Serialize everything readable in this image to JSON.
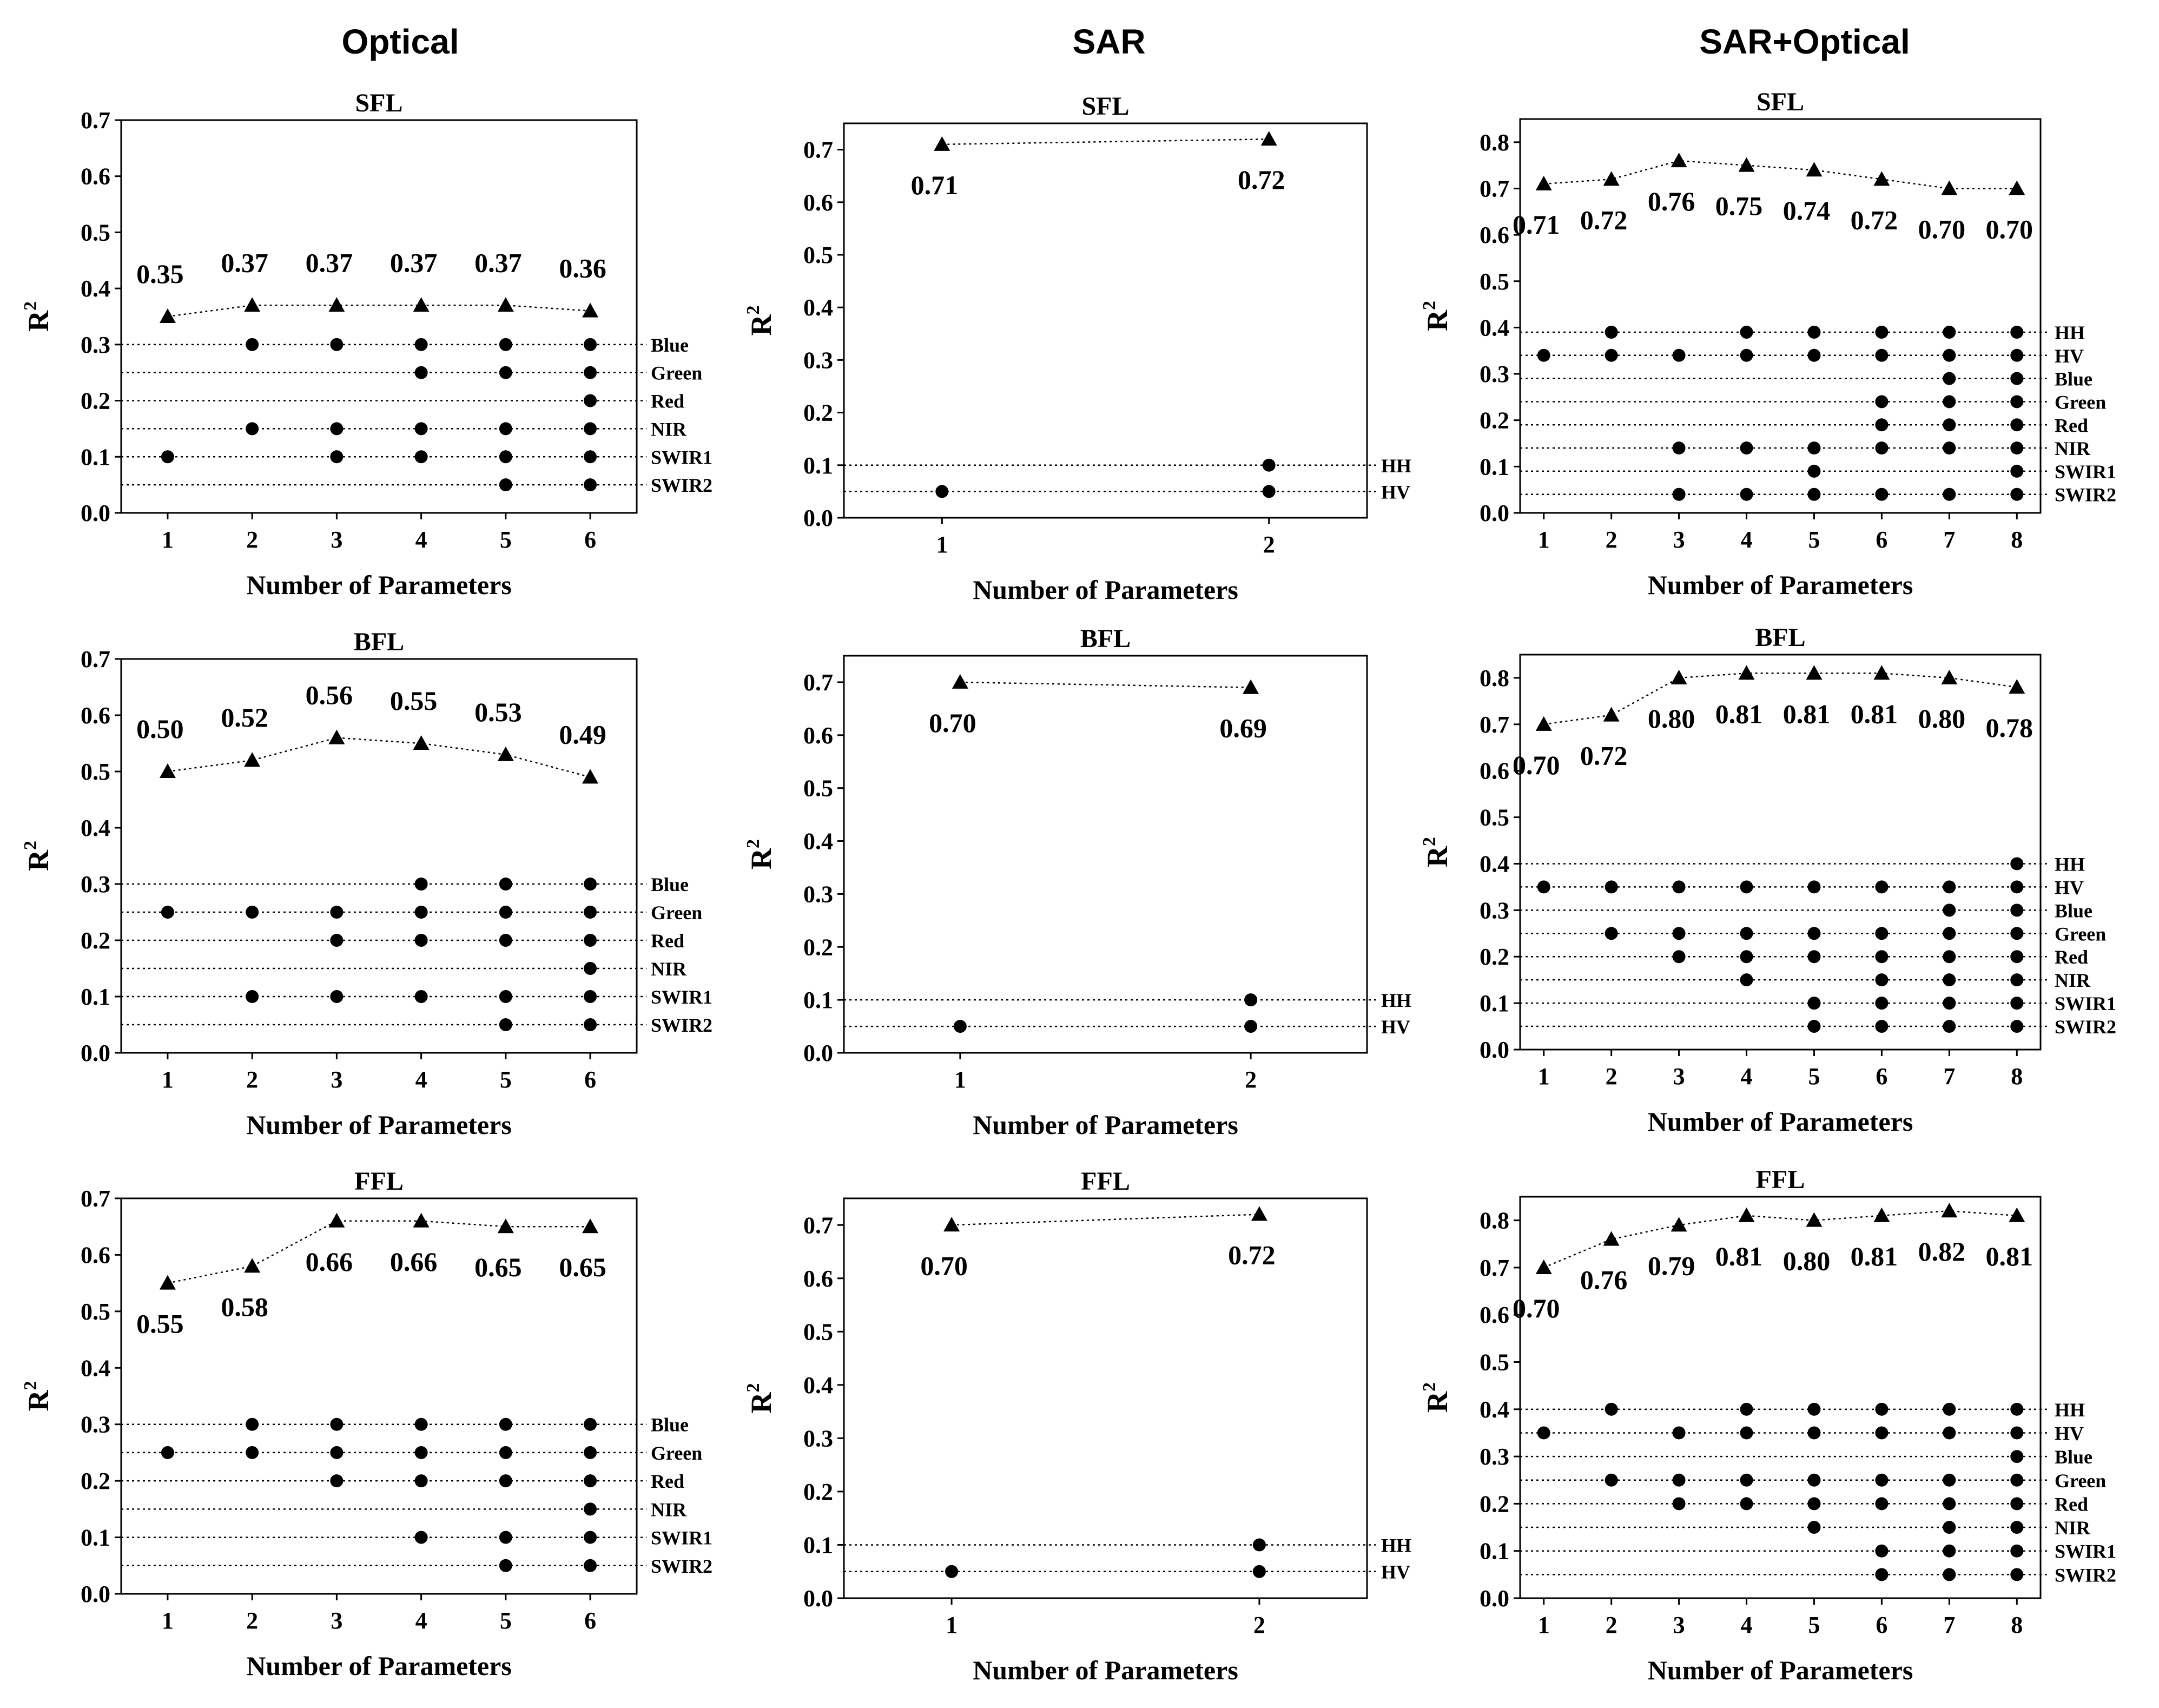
{
  "columns": [
    "Optical",
    "SAR",
    "SAR+Optical"
  ],
  "chart_data": [
    {
      "type": "scatter",
      "column": "Optical",
      "title": "SFL",
      "xlabel": "Number of Parameters",
      "ylabel": "R2",
      "xticks": [
        1,
        2,
        3,
        4,
        5,
        6
      ],
      "ylim": [
        0,
        0.7
      ],
      "yticks": [
        0,
        0.1,
        0.2,
        0.3,
        0.4,
        0.5,
        0.6,
        0.7
      ],
      "yticklabels": [
        "0.0",
        "0.1",
        "0.2",
        "0.3",
        "0.4",
        "0.5",
        "0.6",
        "0.7"
      ],
      "r2_series": [
        0.35,
        0.37,
        0.37,
        0.37,
        0.37,
        0.36
      ],
      "r2_labels": [
        "0.35",
        "0.37",
        "0.37",
        "0.37",
        "0.37",
        "0.36"
      ],
      "label_position": "above",
      "parameters": [
        {
          "name": "Blue",
          "y": 0.3,
          "selected_at": [
            2,
            3,
            4,
            5,
            6
          ]
        },
        {
          "name": "Green",
          "y": 0.25,
          "selected_at": [
            4,
            5,
            6
          ]
        },
        {
          "name": "Red",
          "y": 0.2,
          "selected_at": [
            6
          ]
        },
        {
          "name": "NIR",
          "y": 0.15,
          "selected_at": [
            2,
            3,
            4,
            5,
            6
          ]
        },
        {
          "name": "SWIR1",
          "y": 0.1,
          "selected_at": [
            1,
            3,
            4,
            5,
            6
          ]
        },
        {
          "name": "SWIR2",
          "y": 0.05,
          "selected_at": [
            5,
            6
          ]
        }
      ]
    },
    {
      "type": "scatter",
      "column": "SAR",
      "title": "SFL",
      "xlabel": "Number of Parameters",
      "ylabel": "R2",
      "xticks": [
        1,
        2
      ],
      "ylim": [
        0,
        0.75
      ],
      "yticks": [
        0,
        0.1,
        0.2,
        0.3,
        0.4,
        0.5,
        0.6,
        0.7
      ],
      "yticklabels": [
        "0.0",
        "0.1",
        "0.2",
        "0.3",
        "0.4",
        "0.5",
        "0.6",
        "0.7"
      ],
      "r2_series": [
        0.71,
        0.72
      ],
      "r2_labels": [
        "0.71",
        "0.72"
      ],
      "label_position": "below",
      "parameters": [
        {
          "name": "HH",
          "y": 0.1,
          "selected_at": [
            2
          ]
        },
        {
          "name": "HV",
          "y": 0.05,
          "selected_at": [
            1,
            2
          ]
        }
      ]
    },
    {
      "type": "scatter",
      "column": "SAR+Optical",
      "title": "SFL",
      "xlabel": "Number of Parameters",
      "ylabel": "R2",
      "xticks": [
        1,
        2,
        3,
        4,
        5,
        6,
        7,
        8
      ],
      "ylim": [
        0,
        0.85
      ],
      "yticks": [
        0,
        0.1,
        0.2,
        0.3,
        0.4,
        0.5,
        0.6,
        0.7,
        0.8
      ],
      "yticklabels": [
        "0.0",
        "0.1",
        "0.2",
        "0.3",
        "0.4",
        "0.5",
        "0.6",
        "0.7",
        "0.8"
      ],
      "r2_series": [
        0.71,
        0.72,
        0.76,
        0.75,
        0.74,
        0.72,
        0.7,
        0.7
      ],
      "r2_labels": [
        "0.71",
        "0.72",
        "0.76",
        "0.75",
        "0.74",
        "0.72",
        "0.70",
        "0.70"
      ],
      "label_position": "below",
      "parameters": [
        {
          "name": "HH",
          "y": 0.39,
          "selected_at": [
            2,
            4,
            5,
            6,
            7,
            8
          ]
        },
        {
          "name": "HV",
          "y": 0.34,
          "selected_at": [
            1,
            2,
            3,
            4,
            5,
            6,
            7,
            8
          ]
        },
        {
          "name": "Blue",
          "y": 0.29,
          "selected_at": [
            7,
            8
          ]
        },
        {
          "name": "Green",
          "y": 0.24,
          "selected_at": [
            6,
            7,
            8
          ]
        },
        {
          "name": "Red",
          "y": 0.19,
          "selected_at": [
            6,
            7,
            8
          ]
        },
        {
          "name": "NIR",
          "y": 0.14,
          "selected_at": [
            3,
            4,
            5,
            6,
            7,
            8
          ]
        },
        {
          "name": "SWIR1",
          "y": 0.09,
          "selected_at": [
            5,
            8
          ]
        },
        {
          "name": "SWIR2",
          "y": 0.04,
          "selected_at": [
            3,
            4,
            5,
            6,
            7,
            8
          ]
        }
      ]
    },
    {
      "type": "scatter",
      "column": "Optical",
      "title": "BFL",
      "xlabel": "Number of Parameters",
      "ylabel": "R2",
      "xticks": [
        1,
        2,
        3,
        4,
        5,
        6
      ],
      "ylim": [
        0,
        0.7
      ],
      "yticks": [
        0,
        0.1,
        0.2,
        0.3,
        0.4,
        0.5,
        0.6,
        0.7
      ],
      "yticklabels": [
        "0.0",
        "0.1",
        "0.2",
        "0.3",
        "0.4",
        "0.5",
        "0.6",
        "0.7"
      ],
      "r2_series": [
        0.5,
        0.52,
        0.56,
        0.55,
        0.53,
        0.49
      ],
      "r2_labels": [
        "0.50",
        "0.52",
        "0.56",
        "0.55",
        "0.53",
        "0.49"
      ],
      "label_position": "above",
      "parameters": [
        {
          "name": "Blue",
          "y": 0.3,
          "selected_at": [
            4,
            5,
            6
          ]
        },
        {
          "name": "Green",
          "y": 0.25,
          "selected_at": [
            1,
            2,
            3,
            4,
            5,
            6
          ]
        },
        {
          "name": "Red",
          "y": 0.2,
          "selected_at": [
            3,
            4,
            5,
            6
          ]
        },
        {
          "name": "NIR",
          "y": 0.15,
          "selected_at": [
            6
          ]
        },
        {
          "name": "SWIR1",
          "y": 0.1,
          "selected_at": [
            2,
            3,
            4,
            5,
            6
          ]
        },
        {
          "name": "SWIR2",
          "y": 0.05,
          "selected_at": [
            5,
            6
          ]
        }
      ]
    },
    {
      "type": "scatter",
      "column": "SAR",
      "title": "BFL",
      "xlabel": "Number of Parameters",
      "ylabel": "R2",
      "xticks": [
        1,
        2
      ],
      "ylim": [
        0,
        0.75
      ],
      "yticks": [
        0,
        0.1,
        0.2,
        0.3,
        0.4,
        0.5,
        0.6,
        0.7
      ],
      "yticklabels": [
        "0.0",
        "0.1",
        "0.2",
        "0.3",
        "0.4",
        "0.5",
        "0.6",
        "0.7"
      ],
      "r2_series": [
        0.7,
        0.69
      ],
      "r2_labels": [
        "0.70",
        "0.69"
      ],
      "label_position": "below",
      "parameters": [
        {
          "name": "HH",
          "y": 0.1,
          "selected_at": [
            2
          ]
        },
        {
          "name": "HV",
          "y": 0.05,
          "selected_at": [
            1,
            2
          ]
        }
      ]
    },
    {
      "type": "scatter",
      "column": "SAR+Optical",
      "title": "BFL",
      "xlabel": "Number of Parameters",
      "ylabel": "R2",
      "xticks": [
        1,
        2,
        3,
        4,
        5,
        6,
        7,
        8
      ],
      "ylim": [
        0,
        0.85
      ],
      "yticks": [
        0,
        0.1,
        0.2,
        0.3,
        0.4,
        0.5,
        0.6,
        0.7,
        0.8
      ],
      "yticklabels": [
        "0.0",
        "0.1",
        "0.2",
        "0.3",
        "0.4",
        "0.5",
        "0.6",
        "0.7",
        "0.8"
      ],
      "r2_series": [
        0.7,
        0.72,
        0.8,
        0.81,
        0.81,
        0.81,
        0.8,
        0.78
      ],
      "r2_labels": [
        "0.70",
        "0.72",
        "0.80",
        "0.81",
        "0.81",
        "0.81",
        "0.80",
        "0.78"
      ],
      "label_position": "below",
      "parameters": [
        {
          "name": "HH",
          "y": 0.4,
          "selected_at": [
            8
          ]
        },
        {
          "name": "HV",
          "y": 0.35,
          "selected_at": [
            1,
            2,
            3,
            4,
            5,
            6,
            7,
            8
          ]
        },
        {
          "name": "Blue",
          "y": 0.3,
          "selected_at": [
            7,
            8
          ]
        },
        {
          "name": "Green",
          "y": 0.25,
          "selected_at": [
            2,
            3,
            4,
            5,
            6,
            7,
            8
          ]
        },
        {
          "name": "Red",
          "y": 0.2,
          "selected_at": [
            3,
            4,
            5,
            6,
            7,
            8
          ]
        },
        {
          "name": "NIR",
          "y": 0.15,
          "selected_at": [
            4,
            6,
            7,
            8
          ]
        },
        {
          "name": "SWIR1",
          "y": 0.1,
          "selected_at": [
            5,
            6,
            7,
            8
          ]
        },
        {
          "name": "SWIR2",
          "y": 0.05,
          "selected_at": [
            5,
            6,
            7,
            8
          ]
        }
      ]
    },
    {
      "type": "scatter",
      "column": "Optical",
      "title": "FFL",
      "xlabel": "Number of Parameters",
      "ylabel": "R2",
      "xticks": [
        1,
        2,
        3,
        4,
        5,
        6
      ],
      "ylim": [
        0,
        0.7
      ],
      "yticks": [
        0,
        0.1,
        0.2,
        0.3,
        0.4,
        0.5,
        0.6,
        0.7
      ],
      "yticklabels": [
        "0.0",
        "0.1",
        "0.2",
        "0.3",
        "0.4",
        "0.5",
        "0.6",
        "0.7"
      ],
      "r2_series": [
        0.55,
        0.58,
        0.66,
        0.66,
        0.65,
        0.65
      ],
      "r2_labels": [
        "0.55",
        "0.58",
        "0.66",
        "0.66",
        "0.65",
        "0.65"
      ],
      "label_position": "below",
      "parameters": [
        {
          "name": "Blue",
          "y": 0.3,
          "selected_at": [
            2,
            3,
            4,
            5,
            6
          ]
        },
        {
          "name": "Green",
          "y": 0.25,
          "selected_at": [
            1,
            2,
            3,
            4,
            5,
            6
          ]
        },
        {
          "name": "Red",
          "y": 0.2,
          "selected_at": [
            3,
            4,
            5,
            6
          ]
        },
        {
          "name": "NIR",
          "y": 0.15,
          "selected_at": [
            6
          ]
        },
        {
          "name": "SWIR1",
          "y": 0.1,
          "selected_at": [
            4,
            5,
            6
          ]
        },
        {
          "name": "SWIR2",
          "y": 0.05,
          "selected_at": [
            5,
            6
          ]
        }
      ]
    },
    {
      "type": "scatter",
      "column": "SAR",
      "title": "FFL",
      "xlabel": "Number of Parameters",
      "ylabel": "R2",
      "xticks": [
        1,
        2
      ],
      "ylim": [
        0,
        0.75
      ],
      "yticks": [
        0,
        0.1,
        0.2,
        0.3,
        0.4,
        0.5,
        0.6,
        0.7
      ],
      "yticklabels": [
        "0.0",
        "0.1",
        "0.2",
        "0.3",
        "0.4",
        "0.5",
        "0.6",
        "0.7"
      ],
      "r2_series": [
        0.7,
        0.72
      ],
      "r2_labels": [
        "0.70",
        "0.72"
      ],
      "label_position": "below",
      "parameters": [
        {
          "name": "HH",
          "y": 0.1,
          "selected_at": [
            2
          ]
        },
        {
          "name": "HV",
          "y": 0.05,
          "selected_at": [
            1,
            2
          ]
        }
      ]
    },
    {
      "type": "scatter",
      "column": "SAR+Optical",
      "title": "FFL",
      "xlabel": "Number of Parameters",
      "ylabel": "R2",
      "xticks": [
        1,
        2,
        3,
        4,
        5,
        6,
        7,
        8
      ],
      "ylim": [
        0,
        0.85
      ],
      "yticks": [
        0,
        0.1,
        0.2,
        0.3,
        0.4,
        0.5,
        0.6,
        0.7,
        0.8
      ],
      "yticklabels": [
        "0.0",
        "0.1",
        "0.2",
        "0.3",
        "0.4",
        "0.5",
        "0.6",
        "0.7",
        "0.8"
      ],
      "r2_series": [
        0.7,
        0.76,
        0.79,
        0.81,
        0.8,
        0.81,
        0.82,
        0.81
      ],
      "r2_labels": [
        "0.70",
        "0.76",
        "0.79",
        "0.81",
        "0.80",
        "0.81",
        "0.82",
        "0.81"
      ],
      "label_position": "below",
      "parameters": [
        {
          "name": "HH",
          "y": 0.4,
          "selected_at": [
            2,
            4,
            5,
            6,
            7,
            8
          ]
        },
        {
          "name": "HV",
          "y": 0.35,
          "selected_at": [
            1,
            3,
            4,
            5,
            6,
            7,
            8
          ]
        },
        {
          "name": "Blue",
          "y": 0.3,
          "selected_at": [
            8
          ]
        },
        {
          "name": "Green",
          "y": 0.25,
          "selected_at": [
            2,
            3,
            4,
            5,
            6,
            7,
            8
          ]
        },
        {
          "name": "Red",
          "y": 0.2,
          "selected_at": [
            3,
            4,
            5,
            6,
            7,
            8
          ]
        },
        {
          "name": "NIR",
          "y": 0.15,
          "selected_at": [
            5,
            7,
            8
          ]
        },
        {
          "name": "SWIR1",
          "y": 0.1,
          "selected_at": [
            6,
            7,
            8
          ]
        },
        {
          "name": "SWIR2",
          "y": 0.05,
          "selected_at": [
            6,
            7,
            8
          ]
        }
      ]
    }
  ]
}
